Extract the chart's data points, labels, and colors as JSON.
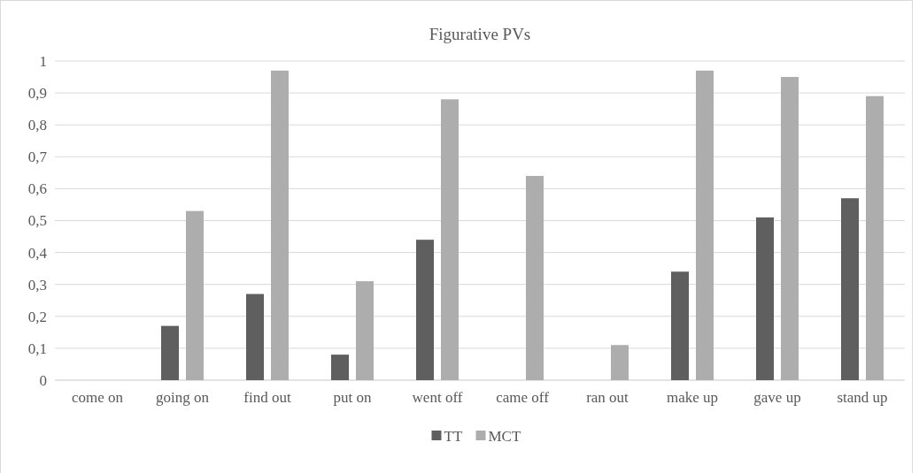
{
  "chart_data": {
    "type": "bar",
    "title": "Figurative PVs",
    "categories": [
      "come on",
      "going on",
      "find out",
      "put on",
      "went off",
      "came off",
      "ran out",
      "make up",
      "gave up",
      "stand up"
    ],
    "series": [
      {
        "name": "TT",
        "color": "#5f5f5f",
        "values": [
          0,
          0.17,
          0.27,
          0.08,
          0.44,
          0,
          0,
          0.34,
          0.51,
          0.57
        ]
      },
      {
        "name": "MCT",
        "color": "#adadad",
        "values": [
          0,
          0.53,
          0.97,
          0.31,
          0.88,
          0.64,
          0.11,
          0.97,
          0.95,
          0.89
        ]
      }
    ],
    "ylim": [
      0,
      1
    ],
    "yticks": [
      {
        "value": 0,
        "label": "0"
      },
      {
        "value": 0.1,
        "label": "0,1"
      },
      {
        "value": 0.2,
        "label": "0,2"
      },
      {
        "value": 0.3,
        "label": "0,3"
      },
      {
        "value": 0.4,
        "label": "0,4"
      },
      {
        "value": 0.5,
        "label": "0,5"
      },
      {
        "value": 0.6,
        "label": "0,6"
      },
      {
        "value": 0.7,
        "label": "0,7"
      },
      {
        "value": 0.8,
        "label": "0,8"
      },
      {
        "value": 0.9,
        "label": "0,9"
      },
      {
        "value": 1,
        "label": "1"
      }
    ],
    "grid": "y",
    "legend": "bottom"
  }
}
